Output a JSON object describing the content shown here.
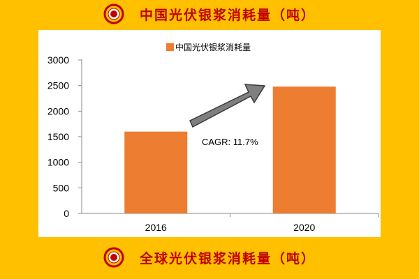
{
  "header": {
    "title": "中国光伏银浆消耗量（吨）",
    "bullet_icon": "target-circle-icon"
  },
  "footer": {
    "title": "全球光伏银浆消耗量（吨）",
    "bullet_icon": "target-circle-icon"
  },
  "colors": {
    "background": "#FFC000",
    "heading_text": "#C00000",
    "bar": "#ED7D31",
    "arrow": "#7F7F7F",
    "panel": "#FFFFFF"
  },
  "chart_data": {
    "type": "bar",
    "categories": [
      "2016",
      "2020"
    ],
    "series": [
      {
        "name": "中国光伏银浆消耗量",
        "values": [
          1600,
          2480
        ]
      }
    ],
    "ylim": [
      0,
      3000
    ],
    "yticks": [
      "0",
      "500",
      "1000",
      "1500",
      "2000",
      "2500",
      "3000"
    ],
    "xlabel": "",
    "ylabel": "",
    "legend": "top-center",
    "grid": false,
    "annotation": {
      "text": "CAGR: 11.7%",
      "icon": "growth-arrow-icon"
    }
  }
}
